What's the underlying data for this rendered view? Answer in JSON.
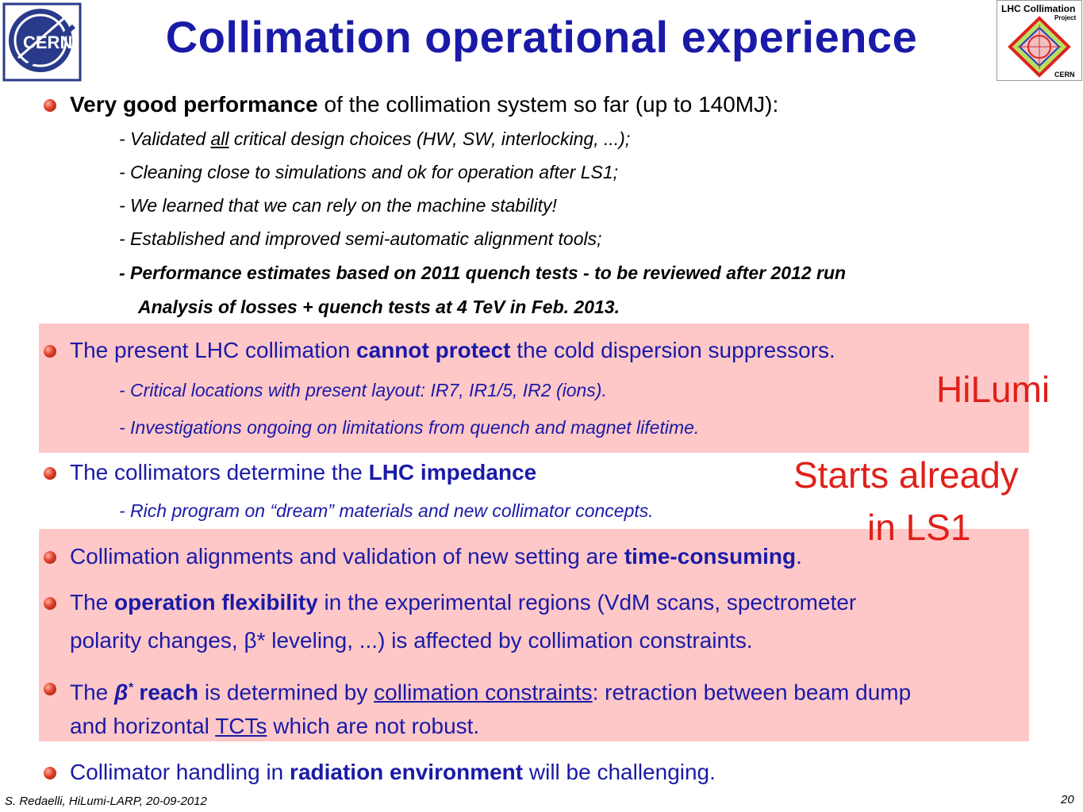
{
  "title": "Collimation operational experience",
  "logos": {
    "cern": "CERN",
    "project_line1": "LHC Collimation",
    "project_line2": "Project",
    "project_line3": "CERN"
  },
  "block1": {
    "bullet_bold": "Very good performance",
    "bullet_rest": " of the collimation system so far (up to 140MJ):",
    "sub1_a": "- Validated ",
    "sub1_u": "all",
    "sub1_b": " critical design choices (HW, SW, interlocking, ...);",
    "sub2": "- Cleaning close to simulations and ok for operation after LS1;",
    "sub3": "- We learned that we can rely on the machine stability!",
    "sub4": "- Established and improved semi-automatic alignment tools;",
    "sub5": "- Performance estimates based on 2011 quench tests - to be reviewed after 2012 run",
    "sub6": "Analysis of losses + quench tests at 4 TeV in Feb. 2013."
  },
  "block2": {
    "a": "The present LHC collimation ",
    "b": "cannot protect",
    "c": " the cold dispersion suppressors.",
    "sub1": "- Critical locations with present layout: IR7, IR1/5, IR2 (ions).",
    "sub2": "- Investigations ongoing on limitations from quench and magnet lifetime."
  },
  "block3": {
    "a": "The collimators determine the ",
    "b": "LHC impedance",
    "sub1": "- Rich program on “dream” materials and new collimator concepts."
  },
  "block4": {
    "a": "Collimation alignments and validation of new setting are ",
    "b": "time-consuming",
    "c": "."
  },
  "block5": {
    "a": "The ",
    "b": "operation flexibility",
    "c": " in the experimental regions (VdM scans, spectrometer",
    "line2": "polarity changes, β* leveling, ...) is affected by collimation constraints."
  },
  "block6": {
    "a": "The ",
    "beta": "β",
    "star": "*",
    "b": " reach",
    "c": " is determined by ",
    "d": "collimation constraints",
    "e": ": retraction between beam dump",
    "line2_a": "and horizontal ",
    "line2_u": "TCTs",
    "line2_b": " which are not robust."
  },
  "block7": {
    "a": "Collimator handling in ",
    "b": "radiation environment",
    "c": " will be challenging."
  },
  "side": {
    "hilumi": "HiLumi",
    "starts1": "Starts already",
    "starts2": "in LS1"
  },
  "footer": {
    "left": "S. Redaelli, HiLumi-LARP, 20-09-2012",
    "page": "20"
  },
  "colors": {
    "title_blue": "#1a1aa8",
    "highlight_pink": "#ffc8c8",
    "annotation_red": "#e0201a"
  }
}
